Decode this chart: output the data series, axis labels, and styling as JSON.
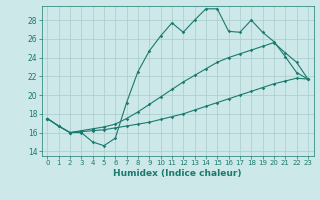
{
  "xlabel": "Humidex (Indice chaleur)",
  "bg_color": "#cce8e8",
  "grid_color": "#aacccc",
  "line_color": "#1a7a6e",
  "xlim": [
    -0.5,
    23.5
  ],
  "ylim": [
    13.5,
    29.5
  ],
  "xticks": [
    0,
    1,
    2,
    3,
    4,
    5,
    6,
    7,
    8,
    9,
    10,
    11,
    12,
    13,
    14,
    15,
    16,
    17,
    18,
    19,
    20,
    21,
    22,
    23
  ],
  "yticks": [
    14,
    16,
    18,
    20,
    22,
    24,
    26,
    28
  ],
  "line1_y": [
    17.5,
    16.7,
    16.0,
    16.0,
    15.0,
    14.6,
    15.4,
    19.2,
    22.5,
    24.7,
    26.3,
    27.7,
    26.7,
    28.0,
    29.2,
    29.2,
    26.8,
    26.7,
    28.0,
    26.7,
    25.7,
    24.1,
    22.4,
    21.7
  ],
  "line2_y": [
    17.5,
    16.7,
    16.0,
    16.1,
    16.2,
    16.3,
    16.5,
    16.7,
    16.9,
    17.1,
    17.4,
    17.7,
    18.0,
    18.4,
    18.8,
    19.2,
    19.6,
    20.0,
    20.4,
    20.8,
    21.2,
    21.5,
    21.8,
    21.7
  ],
  "line3_y": [
    17.5,
    16.7,
    16.0,
    16.2,
    16.4,
    16.6,
    16.9,
    17.5,
    18.2,
    19.0,
    19.8,
    20.6,
    21.4,
    22.1,
    22.8,
    23.5,
    24.0,
    24.4,
    24.8,
    25.2,
    25.6,
    24.5,
    23.5,
    21.7
  ]
}
